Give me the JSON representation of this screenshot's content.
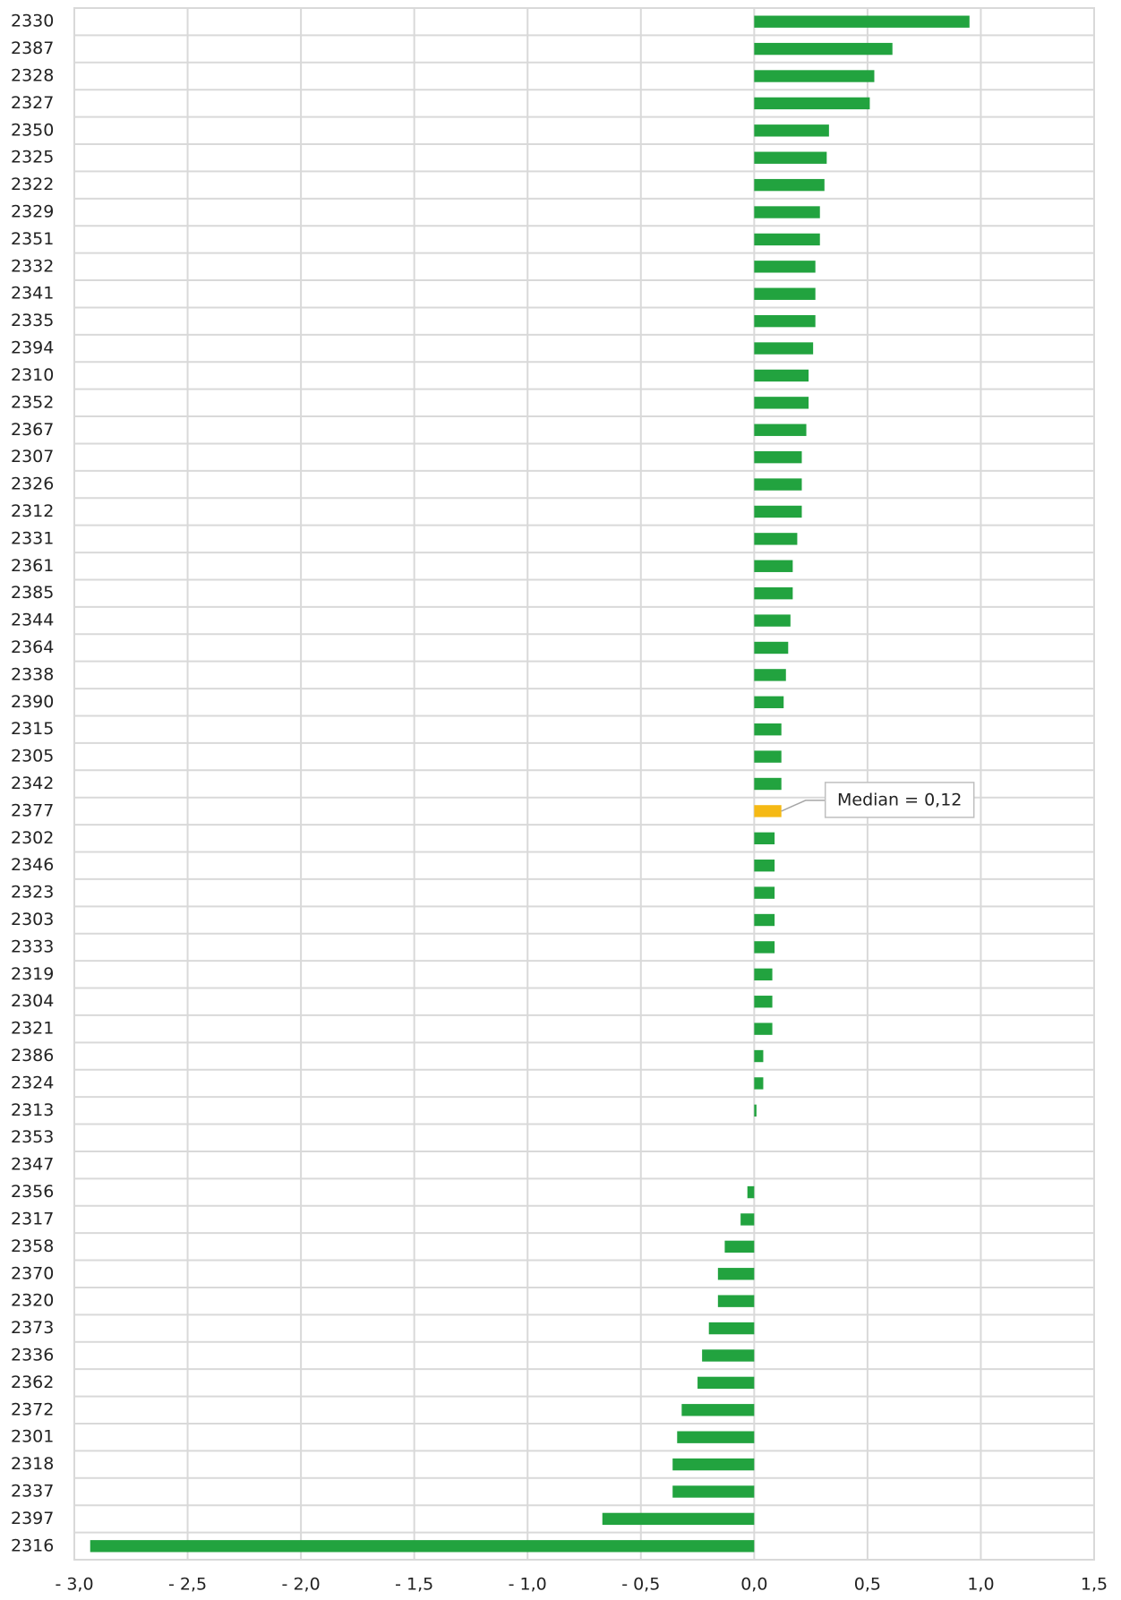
{
  "chart_data": {
    "type": "hbar",
    "categories": [
      "2330",
      "2387",
      "2328",
      "2327",
      "2350",
      "2325",
      "2322",
      "2329",
      "2351",
      "2332",
      "2341",
      "2335",
      "2394",
      "2310",
      "2352",
      "2367",
      "2307",
      "2326",
      "2312",
      "2331",
      "2361",
      "2385",
      "2344",
      "2364",
      "2338",
      "2390",
      "2315",
      "2305",
      "2342",
      "2377",
      "2302",
      "2346",
      "2323",
      "2303",
      "2333",
      "2319",
      "2304",
      "2321",
      "2386",
      "2324",
      "2313",
      "2353",
      "2347",
      "2356",
      "2317",
      "2358",
      "2370",
      "2320",
      "2373",
      "2336",
      "2362",
      "2372",
      "2301",
      "2318",
      "2337",
      "2397",
      "2316"
    ],
    "values": [
      0.95,
      0.61,
      0.53,
      0.51,
      0.33,
      0.32,
      0.31,
      0.29,
      0.29,
      0.27,
      0.27,
      0.27,
      0.26,
      0.24,
      0.24,
      0.23,
      0.21,
      0.21,
      0.21,
      0.19,
      0.17,
      0.17,
      0.16,
      0.15,
      0.14,
      0.13,
      0.12,
      0.12,
      0.12,
      0.12,
      0.09,
      0.09,
      0.09,
      0.09,
      0.09,
      0.08,
      0.08,
      0.08,
      0.04,
      0.04,
      0.01,
      0.0,
      0.0,
      -0.03,
      -0.06,
      -0.13,
      -0.16,
      -0.16,
      -0.2,
      -0.23,
      -0.25,
      -0.32,
      -0.34,
      -0.36,
      -0.36,
      -0.67,
      -2.93
    ],
    "colors": [
      "#22a33f",
      "#22a33f",
      "#22a33f",
      "#22a33f",
      "#22a33f",
      "#22a33f",
      "#22a33f",
      "#22a33f",
      "#22a33f",
      "#22a33f",
      "#22a33f",
      "#22a33f",
      "#22a33f",
      "#22a33f",
      "#22a33f",
      "#22a33f",
      "#22a33f",
      "#22a33f",
      "#22a33f",
      "#22a33f",
      "#22a33f",
      "#22a33f",
      "#22a33f",
      "#22a33f",
      "#22a33f",
      "#22a33f",
      "#22a33f",
      "#22a33f",
      "#22a33f",
      "#f5b914",
      "#22a33f",
      "#22a33f",
      "#22a33f",
      "#22a33f",
      "#22a33f",
      "#22a33f",
      "#22a33f",
      "#22a33f",
      "#22a33f",
      "#22a33f",
      "#22a33f",
      "#22a33f",
      "#22a33f",
      "#22a33f",
      "#22a33f",
      "#22a33f",
      "#22a33f",
      "#22a33f",
      "#22a33f",
      "#22a33f",
      "#22a33f",
      "#22a33f",
      "#22a33f",
      "#22a33f",
      "#22a33f",
      "#22a33f",
      "#22a33f"
    ],
    "xlim": [
      -3,
      1.5
    ],
    "xticks": [
      {
        "value": -3,
        "label": "- 3,0"
      },
      {
        "value": -2.5,
        "label": "- 2,5"
      },
      {
        "value": -2,
        "label": "- 2,0"
      },
      {
        "value": -1.5,
        "label": "- 1,5"
      },
      {
        "value": -1,
        "label": "- 1,0"
      },
      {
        "value": -0.5,
        "label": "- 0,5"
      },
      {
        "value": 0,
        "label": "0,0"
      },
      {
        "value": 0.5,
        "label": "0,5"
      },
      {
        "value": 1,
        "label": "1,0"
      },
      {
        "value": 1.5,
        "label": "1,5"
      }
    ],
    "grid": true,
    "annotation": "Median = 0,12"
  }
}
